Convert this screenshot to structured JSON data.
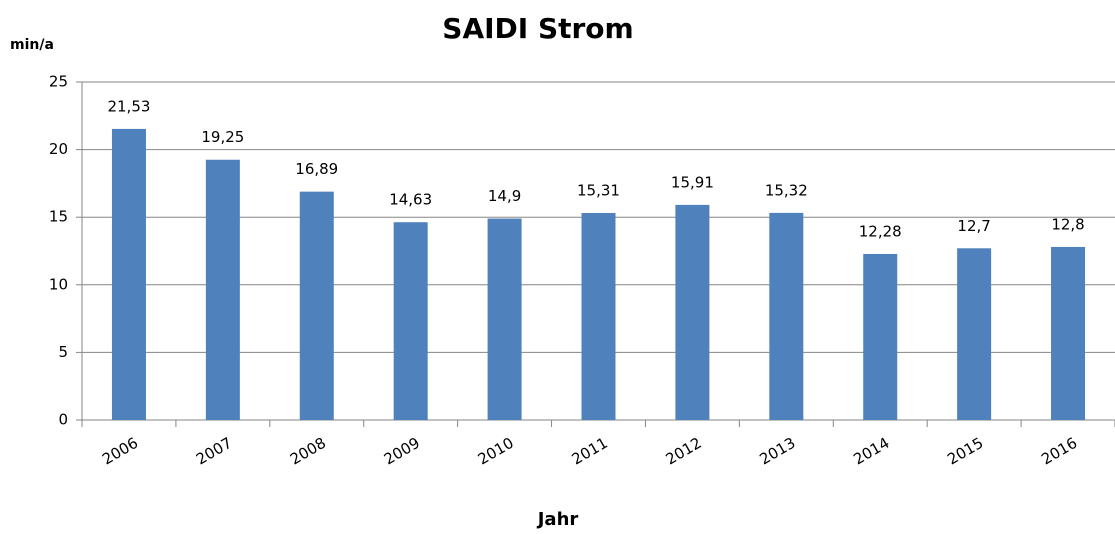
{
  "chart_data": {
    "type": "bar",
    "title": "SAIDI Strom",
    "y_label": "min/a",
    "x_label": "Jahr",
    "categories": [
      "2006",
      "2007",
      "2008",
      "2009",
      "2010",
      "2011",
      "2012",
      "2013",
      "2014",
      "2015",
      "2016"
    ],
    "values": [
      21.53,
      19.25,
      16.89,
      14.63,
      14.9,
      15.31,
      15.91,
      15.32,
      12.28,
      12.7,
      12.8
    ],
    "value_labels": [
      "21,53",
      "19,25",
      "16,89",
      "14,63",
      "14,9",
      "15,31",
      "15,91",
      "15,32",
      "12,28",
      "12,7",
      "12,8"
    ],
    "color": "#4f81bd",
    "ylim": [
      0,
      25
    ],
    "yticks": [
      0,
      5,
      10,
      15,
      20,
      25
    ],
    "grid": true
  }
}
